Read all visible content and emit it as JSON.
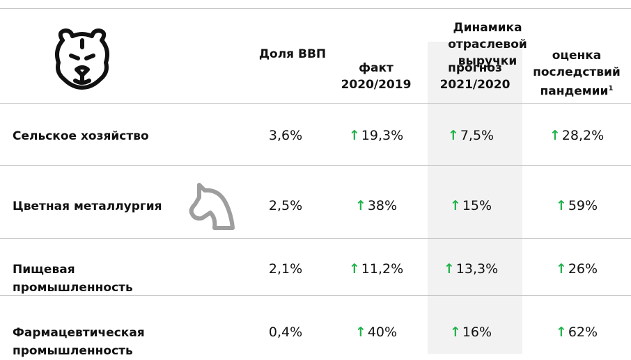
{
  "header": {
    "group": "Динамика отраслевой выручки",
    "gdp": "Доля ВВП",
    "fact": [
      "факт",
      "2020/2019"
    ],
    "forecast": [
      "прогноз",
      "2021/2020"
    ],
    "impact": [
      "оценка",
      "последствий",
      "пандемии"
    ],
    "impact_note": "1"
  },
  "table": {
    "rows": [
      [
        "Сельское хозяйство",
        "3,6%",
        "19,3%",
        "7,5%",
        "28,2%"
      ],
      [
        "Цветная металлургия",
        "2,5%",
        "38%",
        "15%",
        "59%"
      ],
      [
        "Пищевая промышленность",
        "2,1%",
        "11,2%",
        "13,3%",
        "26%"
      ],
      [
        "Фармацевтическая промышленность",
        "0,4%",
        "40%",
        "16%",
        "62%"
      ]
    ]
  }
}
